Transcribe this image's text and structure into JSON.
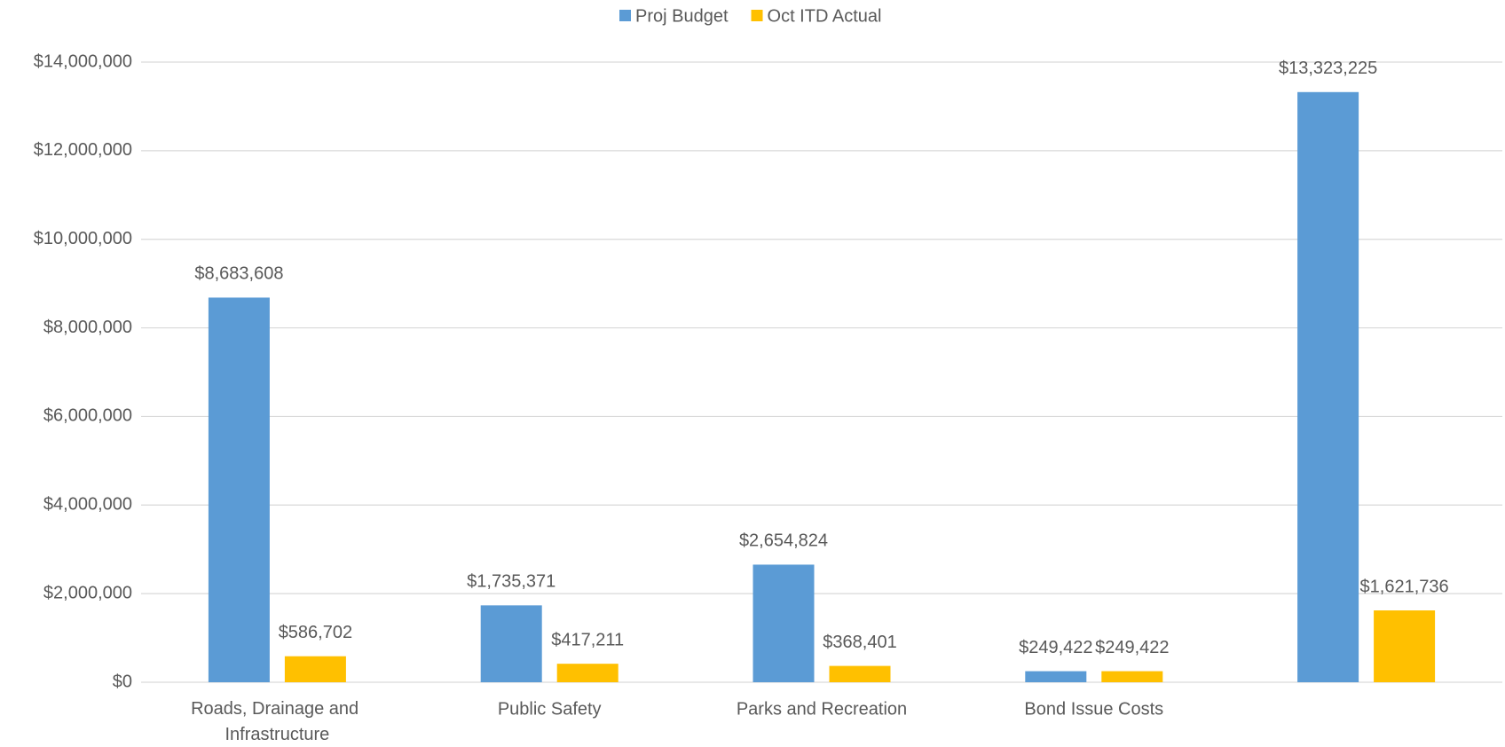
{
  "chart_data": {
    "type": "bar",
    "categories": [
      "Roads, Drainage and Infrastructure",
      "Public Safety",
      "Parks and Recreation",
      "Bond Issue Costs",
      null
    ],
    "series": [
      {
        "name": "Proj Budget",
        "color": "#5b9bd5",
        "values": [
          8683608,
          1735371,
          2654824,
          249422,
          13323225
        ],
        "value_labels": [
          "$8,683,608",
          "$1,735,371",
          "$2,654,824",
          "$249,422",
          "$13,323,225"
        ]
      },
      {
        "name": "Oct ITD Actual",
        "color": "#ffc000",
        "values": [
          586702,
          417211,
          368401,
          249422,
          1621736
        ],
        "value_labels": [
          "$586,702",
          "$417,211",
          "$368,401",
          "$249,422",
          "$1,621,736"
        ]
      }
    ],
    "ylim": [
      0,
      14000000
    ],
    "yticks": [
      {
        "value": 0,
        "label": "$0"
      },
      {
        "value": 2000000,
        "label": "$2,000,000"
      },
      {
        "value": 4000000,
        "label": "$4,000,000"
      },
      {
        "value": 6000000,
        "label": "$6,000,000"
      },
      {
        "value": 8000000,
        "label": "$8,000,000"
      },
      {
        "value": 10000000,
        "label": "$10,000,000"
      },
      {
        "value": 12000000,
        "label": "$12,000,000"
      },
      {
        "value": 14000000,
        "label": "$14,000,000"
      }
    ],
    "grid": true,
    "legend": "top"
  }
}
